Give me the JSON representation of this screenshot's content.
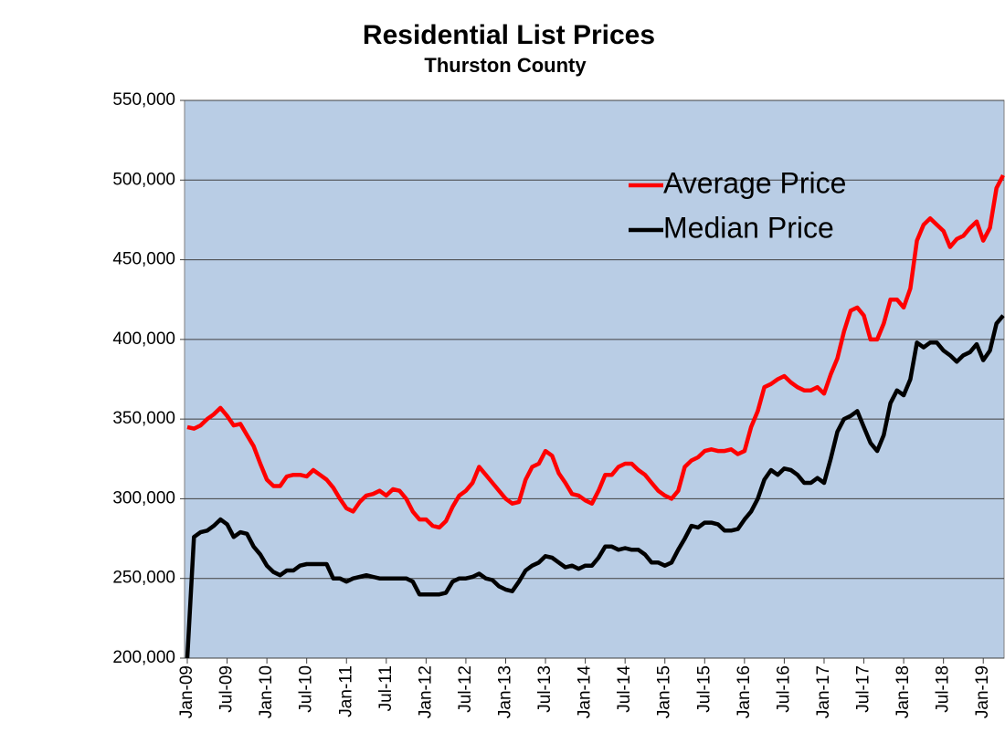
{
  "chart_data": {
    "type": "line",
    "title": "Residential List Prices",
    "subtitle": "Thurston County",
    "categories": [
      "Jan-09",
      null,
      null,
      null,
      null,
      null,
      "Jul-09",
      null,
      null,
      null,
      null,
      null,
      "Jan-10",
      null,
      null,
      null,
      null,
      null,
      "Jul-10",
      null,
      null,
      null,
      null,
      null,
      "Jan-11",
      null,
      null,
      null,
      null,
      null,
      "Jul-11",
      null,
      null,
      null,
      null,
      null,
      "Jan-12",
      null,
      null,
      null,
      null,
      null,
      "Jul-12",
      null,
      null,
      null,
      null,
      null,
      "Jan-13",
      null,
      null,
      null,
      null,
      null,
      "Jul-13",
      null,
      null,
      null,
      null,
      null,
      "Jan-14",
      null,
      null,
      null,
      null,
      null,
      "Jul-14",
      null,
      null,
      null,
      null,
      null,
      "Jan-15",
      null,
      null,
      null,
      null,
      null,
      "Jul-15",
      null,
      null,
      null,
      null,
      null,
      "Jan-16",
      null,
      null,
      null,
      null,
      null,
      "Jul-16",
      null,
      null,
      null,
      null,
      null,
      "Jan-17",
      null,
      null,
      null,
      null,
      null,
      "Jul-17",
      null,
      null,
      null,
      null,
      null,
      "Jan-18",
      null,
      null,
      null,
      null,
      null,
      "Jul-18",
      null,
      null,
      null,
      null,
      null,
      "Jan-19",
      null,
      null,
      null
    ],
    "series": [
      {
        "name": "Average Price",
        "color": "#ff0000",
        "values": [
          345000,
          344000,
          346000,
          350000,
          353000,
          357000,
          352000,
          346000,
          347000,
          340000,
          333000,
          322000,
          312000,
          308000,
          308000,
          314000,
          315000,
          315000,
          314000,
          318000,
          315000,
          312000,
          307000,
          300000,
          294000,
          292000,
          298000,
          302000,
          303000,
          305000,
          302000,
          306000,
          305000,
          300000,
          292000,
          287000,
          287000,
          283000,
          282000,
          286000,
          295000,
          302000,
          305000,
          310000,
          320000,
          315000,
          310000,
          305000,
          300000,
          297000,
          298000,
          312000,
          320000,
          322000,
          330000,
          327000,
          316000,
          310000,
          303000,
          302000,
          299000,
          297000,
          305000,
          315000,
          315000,
          320000,
          322000,
          322000,
          318000,
          315000,
          310000,
          305000,
          302000,
          300000,
          305000,
          320000,
          324000,
          326000,
          330000,
          331000,
          330000,
          330000,
          331000,
          328000,
          330000,
          345000,
          355000,
          370000,
          372000,
          375000,
          377000,
          373000,
          370000,
          368000,
          368000,
          370000,
          366000,
          378000,
          388000,
          405000,
          418000,
          420000,
          415000,
          400000,
          400000,
          410000,
          425000,
          425000,
          420000,
          432000,
          462000,
          472000,
          476000,
          472000,
          468000,
          458000,
          463000,
          465000,
          470000,
          474000,
          462000,
          470000,
          495000,
          503000
        ]
      },
      {
        "name": "Median Price",
        "color": "#000000",
        "values": [
          200000,
          276000,
          279000,
          280000,
          283000,
          287000,
          284000,
          276000,
          279000,
          278000,
          270000,
          265000,
          258000,
          254000,
          252000,
          255000,
          255000,
          258000,
          259000,
          259000,
          259000,
          259000,
          250000,
          250000,
          248000,
          250000,
          251000,
          252000,
          251000,
          250000,
          250000,
          250000,
          250000,
          250000,
          248000,
          240000,
          240000,
          240000,
          240000,
          241000,
          248000,
          250000,
          250000,
          251000,
          253000,
          250000,
          249000,
          245000,
          243000,
          242000,
          248000,
          255000,
          258000,
          260000,
          264000,
          263000,
          260000,
          257000,
          258000,
          256000,
          258000,
          258000,
          263000,
          270000,
          270000,
          268000,
          269000,
          268000,
          268000,
          265000,
          260000,
          260000,
          258000,
          260000,
          268000,
          275000,
          283000,
          282000,
          285000,
          285000,
          284000,
          280000,
          280000,
          281000,
          287000,
          292000,
          300000,
          312000,
          318000,
          315000,
          319000,
          318000,
          315000,
          310000,
          310000,
          313000,
          310000,
          325000,
          342000,
          350000,
          352000,
          355000,
          345000,
          335000,
          330000,
          340000,
          360000,
          368000,
          365000,
          375000,
          398000,
          395000,
          398000,
          398000,
          393000,
          390000,
          386000,
          390000,
          392000,
          397000,
          387000,
          393000,
          410000,
          415000
        ]
      }
    ],
    "ylim": [
      200000,
      550000
    ],
    "yticks": [
      {
        "value": 200000,
        "label": "200,000"
      },
      {
        "value": 250000,
        "label": "250,000"
      },
      {
        "value": 300000,
        "label": "300,000"
      },
      {
        "value": 350000,
        "label": "350,000"
      },
      {
        "value": 400000,
        "label": "400,000"
      },
      {
        "value": 450000,
        "label": "450,000"
      },
      {
        "value": 500000,
        "label": "500,000"
      },
      {
        "value": 550000,
        "label": "550,000"
      }
    ],
    "grid": true,
    "legend": "upper right"
  }
}
